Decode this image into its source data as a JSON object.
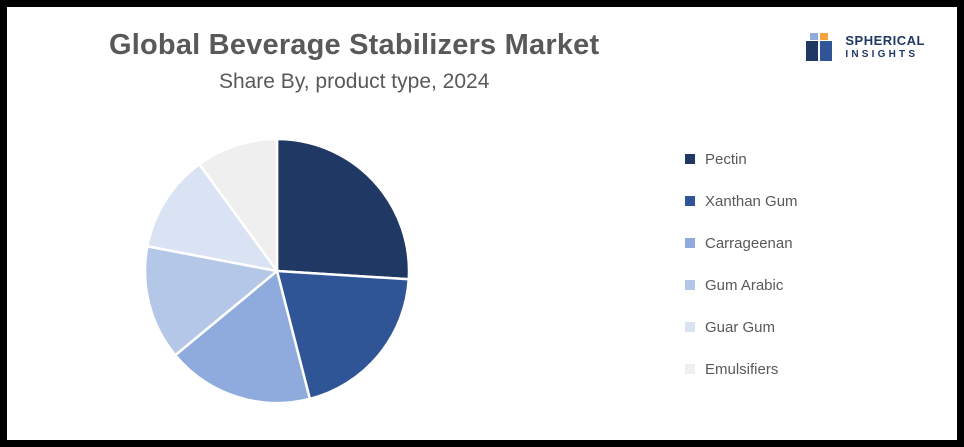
{
  "header": {
    "title": "Global Beverage Stabilizers Market",
    "subtitle": "Share By, product type, 2024"
  },
  "logo": {
    "line1": "SPHERICAL",
    "line2": "INSIGHTS",
    "brand_navy": "#1f3864",
    "brand_orange": "#f2a33a"
  },
  "chart_data": {
    "type": "pie",
    "title": "Global Beverage Stabilizers Market",
    "subtitle": "Share By, product type, 2024",
    "categories": [
      "Pectin",
      "Xanthan Gum",
      "Carrageenan",
      "Gum Arabic",
      "Guar Gum",
      "Emulsifiers"
    ],
    "values": [
      26,
      20,
      18,
      14,
      12,
      10
    ],
    "colors": [
      "#1f3864",
      "#2f5597",
      "#8faadc",
      "#b4c7e7",
      "#dae3f3",
      "#efefef"
    ],
    "legend_position": "right",
    "start_angle_deg": 0,
    "direction": "clockwise",
    "slice_border_color": "#ffffff"
  }
}
